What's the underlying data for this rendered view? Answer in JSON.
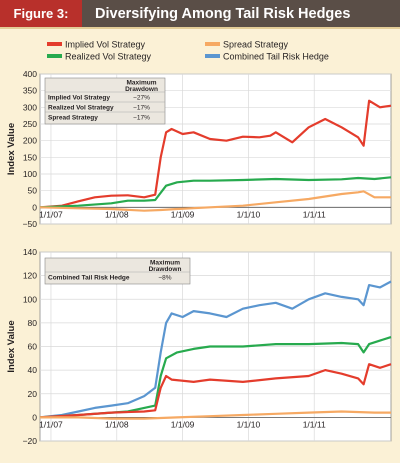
{
  "header": {
    "figure_label": "Figure 3:",
    "title": "Diversifying Among Tail Risk Hedges"
  },
  "colors": {
    "implied": "#e43c2c",
    "realized": "#27aa4e",
    "spread": "#f6a963",
    "combined": "#5b96d0",
    "header_bg": "#5a4e47",
    "label_bg": "#b8302b",
    "page_bg": "#fbf1d6"
  },
  "legend": {
    "items": [
      {
        "key": "implied",
        "label": "Implied Vol Strategy"
      },
      {
        "key": "spread",
        "label": "Spread Strategy"
      },
      {
        "key": "realized",
        "label": "Realized Vol Strategy"
      },
      {
        "key": "combined",
        "label": "Combined Tail Risk Hedge"
      }
    ]
  },
  "chart_data": [
    {
      "type": "line",
      "ylabel": "Index Value",
      "ylim": [
        -50,
        400
      ],
      "yticks": [
        -50,
        0,
        50,
        100,
        150,
        200,
        250,
        300,
        350,
        400
      ],
      "xticks": [
        "1/1/07",
        "1/1/08",
        "1/1/09",
        "1/1/10",
        "1/1/11"
      ],
      "xlim": [
        "2006-11",
        "2012-03"
      ],
      "grid": true,
      "drawdown_table": {
        "header": [
          "Maximum",
          "Drawdown"
        ],
        "rows": [
          {
            "label": "Implied Vol Strategy",
            "value": "−27%"
          },
          {
            "label": "Realized Vol Strategy",
            "value": "−17%"
          },
          {
            "label": "Spread Strategy",
            "value": "−17%"
          }
        ]
      },
      "series": [
        {
          "name": "Implied Vol Strategy",
          "key": "implied",
          "points": [
            [
              "2006-11",
              0
            ],
            [
              "2007-03",
              5
            ],
            [
              "2007-06",
              18
            ],
            [
              "2007-09",
              30
            ],
            [
              "2007-12",
              35
            ],
            [
              "2008-03",
              36
            ],
            [
              "2008-06",
              30
            ],
            [
              "2008-08",
              38
            ],
            [
              "2008-09",
              150
            ],
            [
              "2008-10",
              225
            ],
            [
              "2008-11",
              235
            ],
            [
              "2009-01",
              220
            ],
            [
              "2009-03",
              225
            ],
            [
              "2009-06",
              205
            ],
            [
              "2009-09",
              200
            ],
            [
              "2009-12",
              212
            ],
            [
              "2010-03",
              210
            ],
            [
              "2010-05",
              215
            ],
            [
              "2010-06",
              225
            ],
            [
              "2010-09",
              195
            ],
            [
              "2010-12",
              240
            ],
            [
              "2011-03",
              265
            ],
            [
              "2011-06",
              240
            ],
            [
              "2011-09",
              210
            ],
            [
              "2011-10",
              185
            ],
            [
              "2011-11",
              320
            ],
            [
              "2012-01",
              300
            ],
            [
              "2012-03",
              305
            ]
          ]
        },
        {
          "name": "Realized Vol Strategy",
          "key": "realized",
          "points": [
            [
              "2006-11",
              0
            ],
            [
              "2007-06",
              5
            ],
            [
              "2007-12",
              12
            ],
            [
              "2008-03",
              20
            ],
            [
              "2008-06",
              20
            ],
            [
              "2008-08",
              22
            ],
            [
              "2008-10",
              65
            ],
            [
              "2008-12",
              75
            ],
            [
              "2009-03",
              80
            ],
            [
              "2009-06",
              80
            ],
            [
              "2009-12",
              82
            ],
            [
              "2010-06",
              85
            ],
            [
              "2010-12",
              82
            ],
            [
              "2011-06",
              84
            ],
            [
              "2011-09",
              88
            ],
            [
              "2011-12",
              85
            ],
            [
              "2012-03",
              90
            ]
          ]
        },
        {
          "name": "Spread Strategy",
          "key": "spread",
          "points": [
            [
              "2006-11",
              0
            ],
            [
              "2007-06",
              -3
            ],
            [
              "2007-12",
              -5
            ],
            [
              "2008-06",
              -10
            ],
            [
              "2008-09",
              -8
            ],
            [
              "2008-12",
              -5
            ],
            [
              "2009-06",
              0
            ],
            [
              "2009-12",
              5
            ],
            [
              "2010-06",
              15
            ],
            [
              "2010-12",
              25
            ],
            [
              "2011-06",
              40
            ],
            [
              "2011-09",
              45
            ],
            [
              "2011-10",
              48
            ],
            [
              "2011-12",
              30
            ],
            [
              "2012-03",
              30
            ]
          ]
        }
      ]
    },
    {
      "type": "line",
      "ylabel": "Index Value",
      "ylim": [
        -20,
        140
      ],
      "yticks": [
        -20,
        0,
        20,
        40,
        60,
        80,
        100,
        120,
        140
      ],
      "xticks": [
        "1/1/07",
        "1/1/08",
        "1/1/09",
        "1/1/10",
        "1/1/11"
      ],
      "xlim": [
        "2006-11",
        "2012-03"
      ],
      "grid": true,
      "drawdown_table": {
        "header": [
          "Maximum",
          "Drawdown"
        ],
        "rows": [
          {
            "label": "Combined Tail Risk Hedge",
            "value": "−8%"
          }
        ]
      },
      "series": [
        {
          "name": "Combined Tail Risk Hedge",
          "key": "combined",
          "points": [
            [
              "2006-11",
              0
            ],
            [
              "2007-03",
              2
            ],
            [
              "2007-06",
              5
            ],
            [
              "2007-09",
              8
            ],
            [
              "2007-12",
              10
            ],
            [
              "2008-03",
              12
            ],
            [
              "2008-06",
              18
            ],
            [
              "2008-08",
              25
            ],
            [
              "2008-09",
              55
            ],
            [
              "2008-10",
              80
            ],
            [
              "2008-11",
              88
            ],
            [
              "2009-01",
              85
            ],
            [
              "2009-03",
              90
            ],
            [
              "2009-06",
              88
            ],
            [
              "2009-09",
              85
            ],
            [
              "2009-12",
              92
            ],
            [
              "2010-03",
              95
            ],
            [
              "2010-06",
              97
            ],
            [
              "2010-09",
              92
            ],
            [
              "2010-12",
              100
            ],
            [
              "2011-03",
              105
            ],
            [
              "2011-06",
              102
            ],
            [
              "2011-09",
              100
            ],
            [
              "2011-10",
              95
            ],
            [
              "2011-11",
              112
            ],
            [
              "2012-01",
              110
            ],
            [
              "2012-03",
              115
            ]
          ]
        },
        {
          "name": "Realized Vol Strategy",
          "key": "realized",
          "points": [
            [
              "2006-11",
              0
            ],
            [
              "2007-06",
              2
            ],
            [
              "2007-12",
              4
            ],
            [
              "2008-03",
              5
            ],
            [
              "2008-06",
              8
            ],
            [
              "2008-08",
              10
            ],
            [
              "2008-09",
              35
            ],
            [
              "2008-10",
              50
            ],
            [
              "2008-12",
              55
            ],
            [
              "2009-03",
              58
            ],
            [
              "2009-06",
              60
            ],
            [
              "2009-12",
              60
            ],
            [
              "2010-06",
              62
            ],
            [
              "2010-12",
              62
            ],
            [
              "2011-06",
              63
            ],
            [
              "2011-09",
              62
            ],
            [
              "2011-10",
              55
            ],
            [
              "2011-11",
              62
            ],
            [
              "2012-01",
              65
            ],
            [
              "2012-03",
              68
            ]
          ]
        },
        {
          "name": "Implied Vol Strategy",
          "key": "implied",
          "points": [
            [
              "2006-11",
              0
            ],
            [
              "2007-06",
              2
            ],
            [
              "2007-12",
              4
            ],
            [
              "2008-06",
              5
            ],
            [
              "2008-08",
              6
            ],
            [
              "2008-09",
              25
            ],
            [
              "2008-10",
              35
            ],
            [
              "2008-11",
              32
            ],
            [
              "2009-03",
              30
            ],
            [
              "2009-06",
              32
            ],
            [
              "2009-12",
              30
            ],
            [
              "2010-06",
              33
            ],
            [
              "2010-12",
              35
            ],
            [
              "2011-03",
              40
            ],
            [
              "2011-06",
              37
            ],
            [
              "2011-09",
              33
            ],
            [
              "2011-10",
              28
            ],
            [
              "2011-11",
              45
            ],
            [
              "2012-01",
              42
            ],
            [
              "2012-03",
              45
            ]
          ]
        },
        {
          "name": "Spread Strategy",
          "key": "spread",
          "points": [
            [
              "2006-11",
              0
            ],
            [
              "2007-06",
              0
            ],
            [
              "2007-12",
              -1
            ],
            [
              "2008-06",
              -1
            ],
            [
              "2008-12",
              0
            ],
            [
              "2009-06",
              1
            ],
            [
              "2009-12",
              2
            ],
            [
              "2010-06",
              3
            ],
            [
              "2010-12",
              4
            ],
            [
              "2011-06",
              5
            ],
            [
              "2011-12",
              4
            ],
            [
              "2012-03",
              4
            ]
          ]
        }
      ]
    }
  ]
}
